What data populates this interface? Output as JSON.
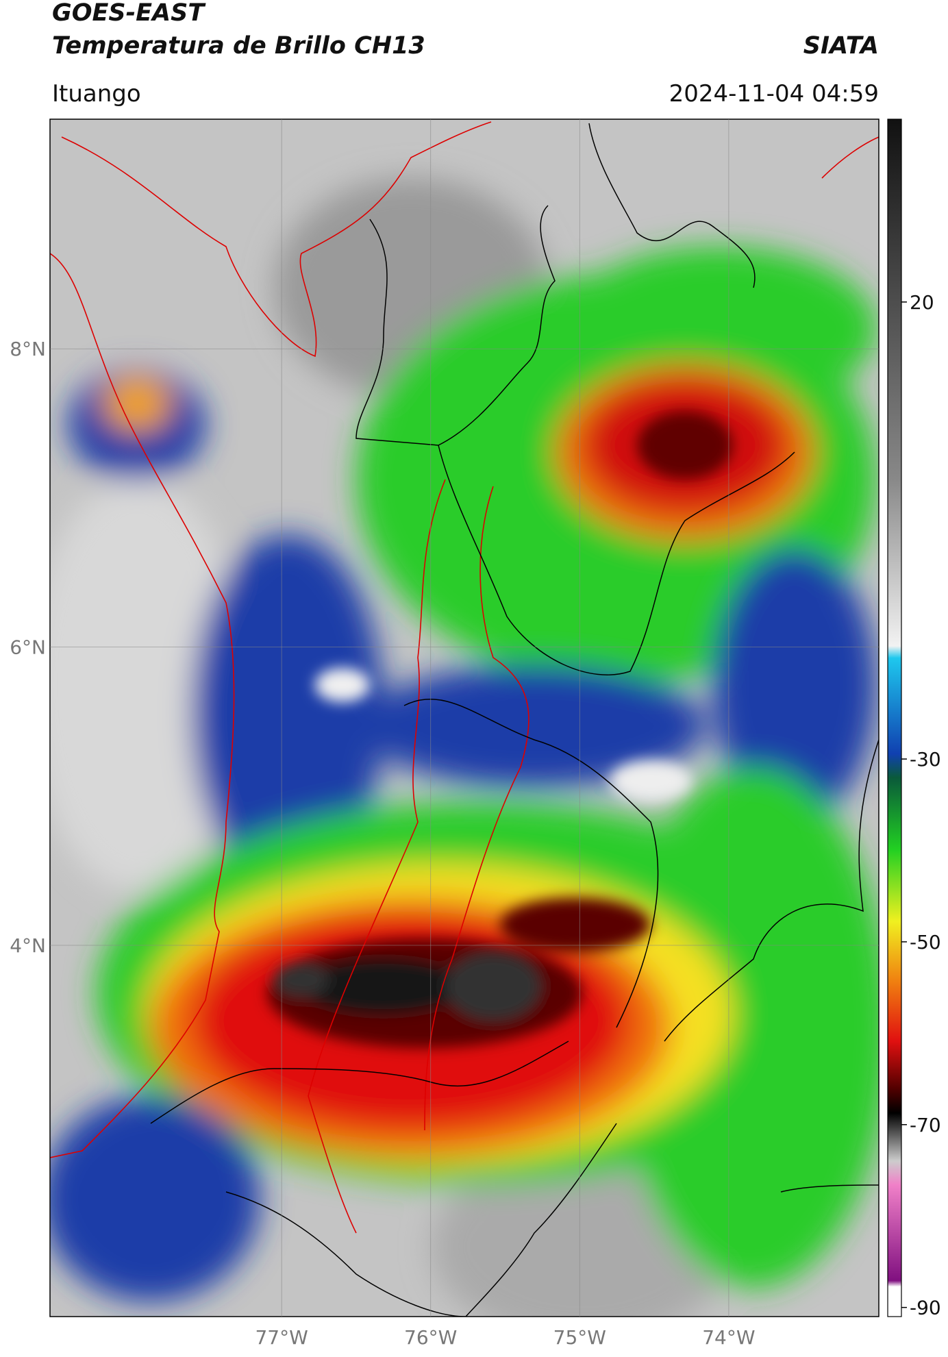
{
  "header": {
    "title_line1": "GOES-EAST",
    "title_line2": "Temperatura de Brillo CH13",
    "agency": "SIATA",
    "location": "Ituango",
    "timestamp": "2024-11-04 04:59"
  },
  "map": {
    "lon_range": [
      -78.554,
      -72.993
    ],
    "lat_range": [
      1.51,
      9.54
    ],
    "lon_ticks": [
      {
        "value": -77,
        "label": "77°W"
      },
      {
        "value": -76,
        "label": "76°W"
      },
      {
        "value": -75,
        "label": "75°W"
      },
      {
        "value": -74,
        "label": "74°W"
      }
    ],
    "lat_ticks": [
      {
        "value": 8,
        "label": "8°N"
      },
      {
        "value": 6,
        "label": "6°N"
      },
      {
        "value": 4,
        "label": "4°N"
      }
    ]
  },
  "colorbar": {
    "range": [
      -91,
      40
    ],
    "ticks": [
      20,
      -30,
      -50,
      -70,
      -90
    ]
  }
}
